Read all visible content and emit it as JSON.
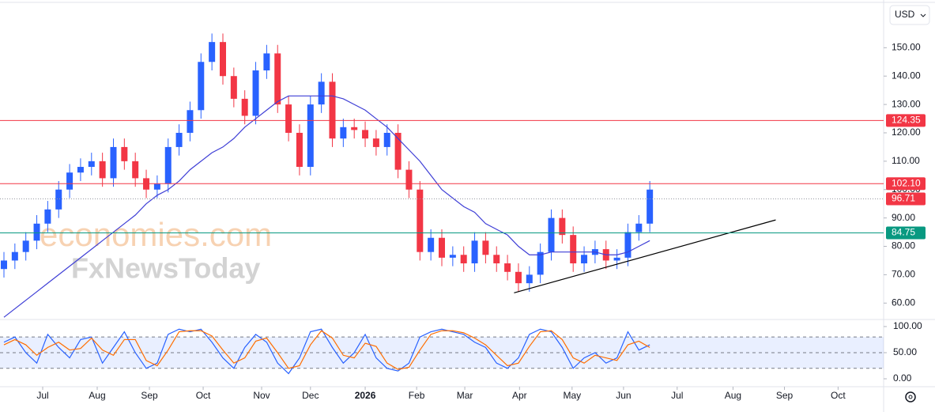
{
  "currency": "USD",
  "watermark": [
    "economies.com",
    "FxNewsToday"
  ],
  "chart_data": [
    {
      "type": "candlestick",
      "xlim": [
        -0.36,
        80.36
      ],
      "ylim": [
        54.5,
        165.7
      ],
      "yticks": [
        {
          "value": 150,
          "label": "150.00"
        },
        {
          "value": 140,
          "label": "140.00"
        },
        {
          "value": 130,
          "label": "130.00"
        },
        {
          "value": 120,
          "label": "120.00"
        },
        {
          "value": 110,
          "label": "110.00"
        },
        {
          "value": 100,
          "label": "100.00"
        },
        {
          "value": 90,
          "label": "90.00"
        },
        {
          "value": 80,
          "label": "80.00"
        },
        {
          "value": 70,
          "label": "70.00"
        },
        {
          "value": 60,
          "label": "60.00"
        }
      ],
      "up_color": "#2962ff",
      "down_color": "#f23645",
      "open": [
        72,
        75,
        78,
        82,
        88,
        93,
        100,
        106,
        108,
        110,
        104,
        115,
        110,
        104,
        100,
        102,
        115,
        120,
        128,
        145,
        152,
        140,
        132,
        126,
        142,
        148,
        130,
        120,
        108,
        130,
        138,
        118,
        122,
        121,
        118,
        115,
        120,
        107,
        100,
        78,
        83,
        76,
        77,
        74,
        82,
        77,
        74,
        71,
        67,
        70,
        78,
        90,
        84,
        74,
        77,
        79,
        75,
        76,
        85,
        88
      ],
      "high": [
        78,
        81,
        85,
        91,
        96,
        103,
        109,
        111,
        113,
        113,
        118,
        118,
        113,
        107,
        105,
        118,
        123,
        131,
        148,
        155,
        155,
        143,
        135,
        145,
        151,
        151,
        133,
        123,
        133,
        141,
        141,
        125,
        125,
        124,
        121,
        123,
        123,
        110,
        103,
        86,
        86,
        80,
        80,
        85,
        85,
        80,
        77,
        74,
        73,
        81,
        93,
        93,
        87,
        80,
        82,
        82,
        79,
        88,
        91,
        103
      ],
      "low": [
        69,
        72,
        75,
        79,
        85,
        90,
        97,
        103,
        105,
        101,
        101,
        107,
        101,
        97,
        97,
        99,
        112,
        117,
        125,
        142,
        137,
        129,
        123,
        123,
        139,
        127,
        117,
        105,
        105,
        127,
        115,
        115,
        118,
        115,
        112,
        112,
        104,
        97,
        75,
        75,
        73,
        73,
        71,
        71,
        74,
        71,
        68,
        64,
        64,
        67,
        75,
        81,
        71,
        71,
        74,
        72,
        72,
        73,
        82,
        85
      ],
      "close": [
        75,
        78,
        82,
        88,
        93,
        100,
        106,
        108,
        110,
        104,
        115,
        110,
        104,
        100,
        102,
        115,
        120,
        128,
        145,
        152,
        140,
        132,
        126,
        142,
        148,
        130,
        120,
        108,
        130,
        138,
        118,
        122,
        121,
        118,
        115,
        120,
        107,
        100,
        78,
        83,
        76,
        77,
        74,
        82,
        77,
        74,
        71,
        67,
        70,
        78,
        90,
        84,
        74,
        77,
        79,
        75,
        76,
        85,
        88,
        100
      ],
      "ma": {
        "color": "#3f3fd6",
        "values": [
          55,
          58,
          61,
          64,
          67,
          70,
          73,
          76,
          79,
          82,
          85,
          88,
          91,
          95,
          98,
          100,
          103,
          107,
          110,
          113,
          115,
          118,
          122,
          125,
          128,
          131,
          133,
          133,
          133,
          133,
          133,
          132,
          130,
          128,
          125,
          122,
          118,
          114,
          110,
          105,
          100,
          97,
          94,
          92,
          88,
          86,
          84,
          80,
          77,
          77,
          78,
          78,
          78,
          78,
          78,
          77,
          77,
          78,
          80,
          82
        ]
      },
      "levels": [
        {
          "value": 124.35,
          "label": "124.35",
          "color": "#f23645",
          "style": "solid"
        },
        {
          "value": 102.1,
          "label": "102.10",
          "color": "#f23645",
          "style": "solid"
        },
        {
          "value": 96.71,
          "label": "96.71",
          "color": "#f23645",
          "style": "dotted"
        },
        {
          "value": 84.75,
          "label": "84.75",
          "color": "#089981",
          "style": "solid"
        }
      ],
      "trendline": {
        "x": [
          46.6,
          70.5
        ],
        "y": [
          63.6,
          89.3
        ],
        "color": "#000000"
      }
    },
    {
      "type": "line",
      "xlim": [
        -0.36,
        80.36
      ],
      "ylim": [
        -13.6,
        112
      ],
      "yticks": [
        {
          "value": 100,
          "label": "100.00"
        },
        {
          "value": 50,
          "label": "50.00"
        },
        {
          "value": 0,
          "label": "0.00"
        }
      ],
      "bands": [
        80,
        50,
        20
      ],
      "xticks": [
        {
          "value": 3.54,
          "label": "Jul"
        },
        {
          "value": 8.52,
          "label": "Aug"
        },
        {
          "value": 13.29,
          "label": "Sep"
        },
        {
          "value": 18.2,
          "label": "Oct"
        },
        {
          "value": 23.54,
          "label": "Nov"
        },
        {
          "value": 28.0,
          "label": "Dec"
        },
        {
          "value": 33.0,
          "label": "2026"
        },
        {
          "value": 37.7,
          "label": "Feb"
        },
        {
          "value": 42.1,
          "label": "Mar"
        },
        {
          "value": 47.1,
          "label": "Apr"
        },
        {
          "value": 51.9,
          "label": "May"
        },
        {
          "value": 56.6,
          "label": "Jun"
        },
        {
          "value": 61.5,
          "label": "Jul"
        },
        {
          "value": 66.6,
          "label": "Aug"
        },
        {
          "value": 71.3,
          "label": "Sep"
        },
        {
          "value": 76.2,
          "label": "Oct"
        }
      ],
      "series": [
        {
          "color": "#2962ff",
          "values": [
            70,
            80,
            50,
            30,
            85,
            60,
            40,
            75,
            80,
            30,
            60,
            90,
            50,
            20,
            30,
            85,
            95,
            90,
            95,
            70,
            40,
            20,
            60,
            85,
            70,
            30,
            10,
            40,
            90,
            95,
            60,
            30,
            50,
            85,
            40,
            20,
            15,
            30,
            80,
            90,
            95,
            90,
            85,
            70,
            60,
            30,
            20,
            40,
            85,
            95,
            90,
            60,
            20,
            40,
            50,
            30,
            40,
            90,
            55,
            65
          ]
        },
        {
          "color": "#ff6d00",
          "values": [
            65,
            75,
            65,
            45,
            60,
            70,
            55,
            58,
            78,
            55,
            45,
            75,
            75,
            35,
            25,
            55,
            90,
            92,
            92,
            82,
            55,
            30,
            40,
            72,
            78,
            50,
            20,
            25,
            65,
            92,
            78,
            45,
            40,
            68,
            62,
            30,
            18,
            22,
            55,
            85,
            92,
            92,
            88,
            78,
            65,
            45,
            25,
            30,
            62,
            90,
            92,
            75,
            40,
            30,
            45,
            40,
            35,
            65,
            72,
            60
          ]
        }
      ]
    }
  ]
}
